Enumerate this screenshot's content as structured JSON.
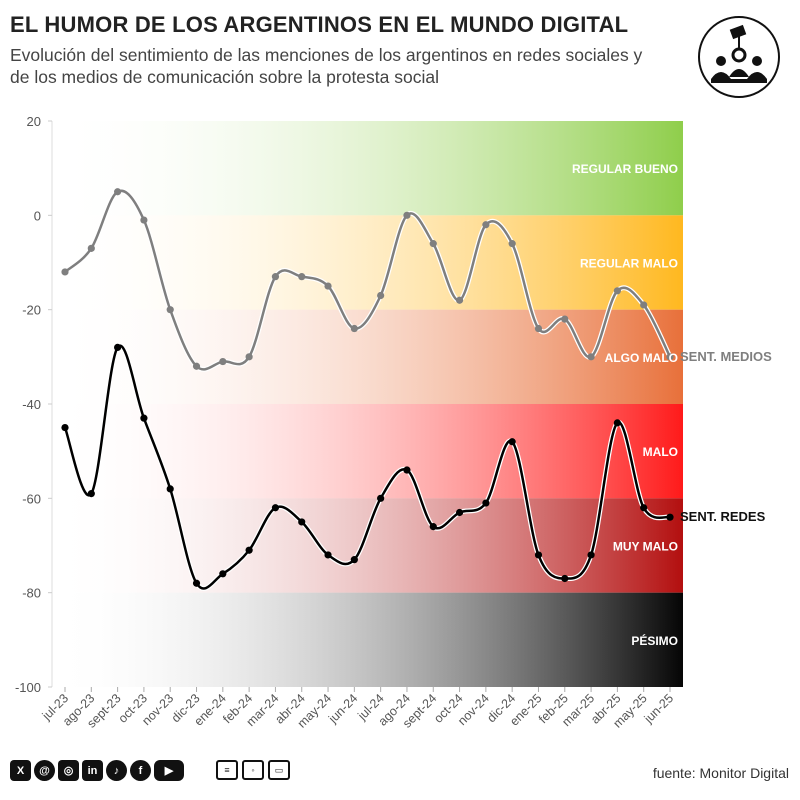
{
  "header": {
    "title": "EL HUMOR DE LOS ARGENTINOS EN EL MUNDO DIGITAL",
    "subtitle": "Evolución del sentimiento de las menciones de los argentinos en redes sociales y de los medios de comunicación sobre la protesta social"
  },
  "footer": {
    "source": "fuente: Monitor Digital",
    "social_icons": [
      "x-icon",
      "threads-icon",
      "instagram-icon",
      "linkedin-icon",
      "tiktok-icon",
      "facebook-icon",
      "youtube-icon"
    ],
    "media_icons": [
      "newspaper-icon",
      "radio-icon",
      "tv-icon"
    ]
  },
  "chart_data": {
    "type": "line",
    "title": "EL HUMOR DE LOS ARGENTINOS EN EL MUNDO DIGITAL",
    "xlabel": "",
    "ylabel": "",
    "ylim": [
      -100,
      20
    ],
    "yticks": [
      20,
      0,
      -20,
      -40,
      -60,
      -80,
      -100
    ],
    "categories": [
      "jul-23",
      "ago-23",
      "sept-23",
      "oct-23",
      "nov-23",
      "dic-23",
      "ene-24",
      "feb-24",
      "mar-24",
      "abr-24",
      "may-24",
      "jun-24",
      "jul-24",
      "ago-24",
      "sept-24",
      "oct-24",
      "nov-24",
      "dic-24",
      "ene-25",
      "feb-25",
      "mar-25",
      "abr-25",
      "may-25",
      "jun-25"
    ],
    "series": [
      {
        "name": "SENT. MEDIOS",
        "color": "#7f7f7f",
        "values": [
          -12,
          -7,
          5,
          -1,
          -20,
          -32,
          -31,
          -30,
          -13,
          -13,
          -15,
          -24,
          -17,
          0,
          -6,
          -18,
          -2,
          -6,
          -24,
          -22,
          -30,
          -16,
          -19,
          -30
        ]
      },
      {
        "name": "SENT. REDES",
        "color": "#000000",
        "values": [
          -45,
          -59,
          -28,
          -43,
          -58,
          -78,
          -76,
          -71,
          -62,
          -65,
          -72,
          -73,
          -60,
          -54,
          -66,
          -63,
          -61,
          -48,
          -72,
          -77,
          -72,
          -44,
          -62,
          -64
        ]
      }
    ],
    "bands": [
      {
        "label": "REGULAR BUENO",
        "from": 0,
        "to": 20,
        "color": "#8fce4b"
      },
      {
        "label": "REGULAR MALO",
        "from": -20,
        "to": 0,
        "color": "#ffb81f"
      },
      {
        "label": "ALGO MALO",
        "from": -40,
        "to": -20,
        "color": "#e8703a"
      },
      {
        "label": "MALO",
        "from": -60,
        "to": -40,
        "color": "#ff1a1a"
      },
      {
        "label": "MUY MALO",
        "from": -80,
        "to": -60,
        "color": "#b30f0f"
      },
      {
        "label": "PÉSIMO",
        "from": -100,
        "to": -80,
        "color": "#050505"
      }
    ]
  }
}
